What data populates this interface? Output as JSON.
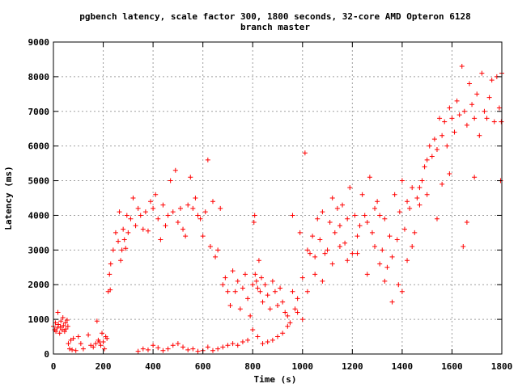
{
  "chart_data": {
    "type": "scatter",
    "title_lines": [
      "pgbench latency, scale factor 300, 1800 seconds, 32-core AMD Opteron 6128",
      "branch master"
    ],
    "xlabel": "Time (s)",
    "ylabel": "Latency (ms)",
    "xlim": [
      0,
      1800
    ],
    "ylim": [
      0,
      9000
    ],
    "x_ticks": [
      0,
      200,
      400,
      600,
      800,
      1000,
      1200,
      1400,
      1600,
      1800
    ],
    "y_ticks": [
      0,
      1000,
      2000,
      3000,
      4000,
      5000,
      6000,
      7000,
      8000,
      9000
    ],
    "x_tick_labels": [
      "0",
      "200",
      "400",
      "600",
      "800",
      "1000",
      "1200",
      "1400",
      "1600",
      "1800"
    ],
    "y_tick_labels": [
      "0",
      "1000",
      "2000",
      "3000",
      "4000",
      "5000",
      "6000",
      "7000",
      "8000",
      "9000"
    ],
    "grid": true,
    "marker": "+",
    "color": "#ff0000",
    "series": [
      {
        "values": [
          [
            0,
            800
          ],
          [
            5,
            700
          ],
          [
            8,
            900
          ],
          [
            10,
            650
          ],
          [
            15,
            750
          ],
          [
            18,
            1200
          ],
          [
            20,
            850
          ],
          [
            25,
            600
          ],
          [
            28,
            780
          ],
          [
            30,
            950
          ],
          [
            35,
            700
          ],
          [
            38,
            1050
          ],
          [
            40,
            820
          ],
          [
            45,
            650
          ],
          [
            48,
            900
          ],
          [
            50,
            720
          ],
          [
            55,
            980
          ],
          [
            58,
            800
          ],
          [
            60,
            300
          ],
          [
            65,
            150
          ],
          [
            70,
            400
          ],
          [
            75,
            120
          ],
          [
            80,
            450
          ],
          [
            90,
            100
          ],
          [
            100,
            500
          ],
          [
            110,
            300
          ],
          [
            120,
            150
          ],
          [
            140,
            550
          ],
          [
            150,
            250
          ],
          [
            160,
            200
          ],
          [
            170,
            300
          ],
          [
            175,
            950
          ],
          [
            180,
            400
          ],
          [
            185,
            350
          ],
          [
            190,
            250
          ],
          [
            195,
            600
          ],
          [
            200,
            350
          ],
          [
            205,
            150
          ],
          [
            210,
            500
          ],
          [
            215,
            450
          ],
          [
            220,
            1800
          ],
          [
            225,
            2300
          ],
          [
            228,
            1850
          ],
          [
            230,
            2600
          ],
          [
            240,
            3000
          ],
          [
            250,
            3500
          ],
          [
            260,
            3250
          ],
          [
            265,
            4100
          ],
          [
            270,
            2700
          ],
          [
            275,
            3000
          ],
          [
            280,
            3600
          ],
          [
            285,
            3300
          ],
          [
            290,
            3050
          ],
          [
            295,
            4000
          ],
          [
            300,
            3500
          ],
          [
            310,
            3900
          ],
          [
            320,
            4500
          ],
          [
            330,
            3700
          ],
          [
            340,
            4200
          ],
          [
            350,
            4000
          ],
          [
            360,
            3600
          ],
          [
            370,
            4100
          ],
          [
            380,
            3550
          ],
          [
            390,
            4400
          ],
          [
            400,
            4200
          ],
          [
            410,
            4600
          ],
          [
            420,
            3900
          ],
          [
            430,
            3300
          ],
          [
            440,
            4300
          ],
          [
            450,
            3700
          ],
          [
            460,
            4000
          ],
          [
            470,
            5000
          ],
          [
            480,
            4100
          ],
          [
            490,
            5300
          ],
          [
            500,
            3800
          ],
          [
            510,
            4200
          ],
          [
            520,
            3600
          ],
          [
            530,
            3400
          ],
          [
            540,
            4300
          ],
          [
            550,
            5100
          ],
          [
            560,
            4200
          ],
          [
            570,
            4500
          ],
          [
            580,
            4000
          ],
          [
            590,
            3900
          ],
          [
            600,
            3400
          ],
          [
            610,
            4100
          ],
          [
            620,
            5600
          ],
          [
            630,
            3100
          ],
          [
            640,
            4400
          ],
          [
            650,
            2800
          ],
          [
            660,
            3000
          ],
          [
            670,
            4200
          ],
          [
            680,
            2000
          ],
          [
            690,
            2200
          ],
          [
            700,
            1800
          ],
          [
            710,
            1400
          ],
          [
            720,
            2400
          ],
          [
            730,
            1800
          ],
          [
            740,
            2100
          ],
          [
            750,
            1300
          ],
          [
            760,
            1900
          ],
          [
            770,
            2300
          ],
          [
            780,
            1600
          ],
          [
            790,
            1100
          ],
          [
            800,
            2000
          ],
          [
            805,
            3800
          ],
          [
            808,
            4000
          ],
          [
            810,
            2300
          ],
          [
            815,
            2100
          ],
          [
            820,
            1900
          ],
          [
            825,
            2700
          ],
          [
            830,
            1800
          ],
          [
            835,
            2200
          ],
          [
            840,
            1500
          ],
          [
            850,
            2000
          ],
          [
            860,
            1700
          ],
          [
            870,
            1300
          ],
          [
            880,
            2100
          ],
          [
            890,
            1800
          ],
          [
            900,
            1400
          ],
          [
            910,
            1900
          ],
          [
            920,
            1500
          ],
          [
            930,
            1200
          ],
          [
            940,
            1100
          ],
          [
            950,
            900
          ],
          [
            960,
            4000
          ],
          [
            970,
            1300
          ],
          [
            980,
            1200
          ],
          [
            990,
            3500
          ],
          [
            1000,
            1000
          ],
          [
            1010,
            5800
          ],
          [
            1020,
            3000
          ],
          [
            1030,
            2900
          ],
          [
            1040,
            3400
          ],
          [
            1050,
            2800
          ],
          [
            1060,
            3900
          ],
          [
            1070,
            3300
          ],
          [
            1080,
            4100
          ],
          [
            1090,
            2900
          ],
          [
            1100,
            3000
          ],
          [
            1110,
            3800
          ],
          [
            1120,
            4500
          ],
          [
            1130,
            3500
          ],
          [
            1140,
            4200
          ],
          [
            1150,
            3700
          ],
          [
            1160,
            4300
          ],
          [
            1170,
            3200
          ],
          [
            1180,
            3900
          ],
          [
            1190,
            4800
          ],
          [
            1200,
            2900
          ],
          [
            1210,
            4000
          ],
          [
            1220,
            3400
          ],
          [
            1230,
            3700
          ],
          [
            1240,
            4600
          ],
          [
            1250,
            4000
          ],
          [
            1260,
            3800
          ],
          [
            1270,
            5100
          ],
          [
            1280,
            3500
          ],
          [
            1290,
            4200
          ],
          [
            1300,
            4400
          ],
          [
            1310,
            4000
          ],
          [
            1320,
            3000
          ],
          [
            1330,
            3900
          ],
          [
            1340,
            2500
          ],
          [
            1350,
            3400
          ],
          [
            1360,
            2800
          ],
          [
            1370,
            4600
          ],
          [
            1380,
            3300
          ],
          [
            1390,
            4100
          ],
          [
            1400,
            5000
          ],
          [
            1410,
            3600
          ],
          [
            1420,
            4400
          ],
          [
            1430,
            4200
          ],
          [
            1440,
            4800
          ],
          [
            1450,
            3500
          ],
          [
            1460,
            4500
          ],
          [
            1470,
            4800
          ],
          [
            1480,
            5000
          ],
          [
            1490,
            5400
          ],
          [
            1500,
            4600
          ],
          [
            1510,
            6000
          ],
          [
            1520,
            5700
          ],
          [
            1530,
            6200
          ],
          [
            1540,
            5900
          ],
          [
            1550,
            6800
          ],
          [
            1560,
            6300
          ],
          [
            1570,
            6700
          ],
          [
            1580,
            6000
          ],
          [
            1590,
            7100
          ],
          [
            1600,
            6800
          ],
          [
            1610,
            6400
          ],
          [
            1620,
            7300
          ],
          [
            1630,
            6900
          ],
          [
            1640,
            8300
          ],
          [
            1650,
            7000
          ],
          [
            1660,
            6600
          ],
          [
            1670,
            7800
          ],
          [
            1680,
            7200
          ],
          [
            1690,
            6800
          ],
          [
            1700,
            7500
          ],
          [
            1710,
            6300
          ],
          [
            1720,
            8100
          ],
          [
            1730,
            7000
          ],
          [
            1740,
            6800
          ],
          [
            1750,
            7400
          ],
          [
            1760,
            7900
          ],
          [
            1770,
            6700
          ],
          [
            1780,
            8000
          ],
          [
            1790,
            7100
          ],
          [
            1800,
            8100
          ],
          [
            1798,
            6700
          ],
          [
            1795,
            5000
          ],
          [
            1690,
            5100
          ],
          [
            1660,
            3800
          ],
          [
            1645,
            3100
          ],
          [
            1590,
            5200
          ],
          [
            1560,
            4900
          ],
          [
            1540,
            3900
          ],
          [
            1500,
            5600
          ],
          [
            1470,
            4300
          ],
          [
            1440,
            3100
          ],
          [
            1420,
            2700
          ],
          [
            1400,
            1800
          ],
          [
            1385,
            2000
          ],
          [
            1360,
            1500
          ],
          [
            1330,
            2100
          ],
          [
            1310,
            2600
          ],
          [
            1290,
            3100
          ],
          [
            1260,
            2300
          ],
          [
            1220,
            2900
          ],
          [
            1180,
            2700
          ],
          [
            1150,
            3100
          ],
          [
            1120,
            2600
          ],
          [
            1080,
            2100
          ],
          [
            1050,
            2300
          ],
          [
            1020,
            1800
          ],
          [
            1000,
            2200
          ],
          [
            980,
            1600
          ],
          [
            960,
            1800
          ],
          [
            940,
            800
          ],
          [
            920,
            600
          ],
          [
            900,
            500
          ],
          [
            880,
            400
          ],
          [
            860,
            350
          ],
          [
            840,
            300
          ],
          [
            820,
            500
          ],
          [
            800,
            700
          ],
          [
            780,
            400
          ],
          [
            760,
            350
          ],
          [
            740,
            250
          ],
          [
            720,
            300
          ],
          [
            700,
            250
          ],
          [
            680,
            200
          ],
          [
            660,
            150
          ],
          [
            640,
            100
          ],
          [
            620,
            200
          ],
          [
            600,
            100
          ],
          [
            580,
            80
          ],
          [
            560,
            150
          ],
          [
            540,
            120
          ],
          [
            520,
            200
          ],
          [
            500,
            300
          ],
          [
            480,
            250
          ],
          [
            460,
            150
          ],
          [
            440,
            100
          ],
          [
            420,
            180
          ],
          [
            400,
            250
          ],
          [
            380,
            120
          ],
          [
            360,
            150
          ],
          [
            340,
            80
          ]
        ]
      }
    ]
  }
}
